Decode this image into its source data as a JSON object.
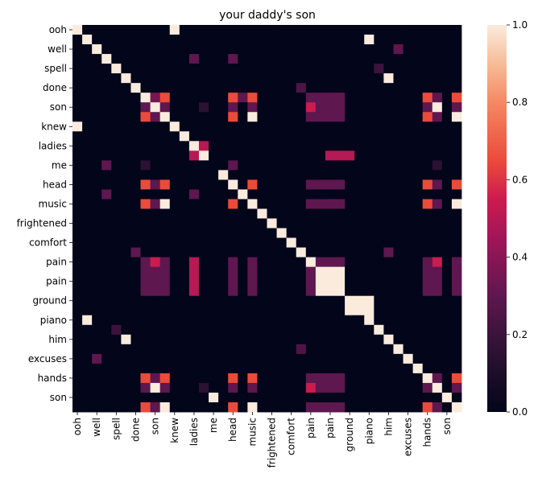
{
  "chart_data": {
    "type": "heatmap",
    "title": "your daddy's son",
    "xlabel": "",
    "ylabel": "",
    "colormap": "rocket",
    "color_range": [
      0.0,
      1.0
    ],
    "colorbar_ticks": [
      "0.0",
      "0.2",
      "0.4",
      "0.6",
      "0.8",
      "1.0"
    ],
    "tokens": [
      "ooh",
      "ooh",
      "well",
      "well",
      "spell",
      "spell",
      "done",
      "done",
      "son",
      "son",
      "knew",
      "knew",
      "ladies",
      "ladies",
      "me",
      "me",
      "head",
      "head",
      "music",
      "music",
      "frightened",
      "frightened",
      "comfort",
      "comfort",
      "pain",
      "pain",
      "pain",
      "pain",
      "ground",
      "ground",
      "piano",
      "piano",
      "him",
      "him",
      "excuses",
      "excuses",
      "hands",
      "hands",
      "son",
      "son"
    ],
    "x_tick_labels": [
      "ooh",
      "well",
      "spell",
      "done",
      "son",
      "knew",
      "ladies",
      "me",
      "head",
      "music",
      "frightened",
      "comfort",
      "pain",
      "pain",
      "ground",
      "piano",
      "him",
      "excuses",
      "hands",
      "son"
    ],
    "y_tick_labels": [
      "ooh",
      "well",
      "spell",
      "done",
      "son",
      "knew",
      "ladies",
      "me",
      "head",
      "music",
      "frightened",
      "comfort",
      "pain",
      "pain",
      "ground",
      "piano",
      "him",
      "excuses",
      "hands",
      "son"
    ],
    "cells": [
      [
        0,
        0,
        1
      ],
      [
        0,
        10,
        1
      ],
      [
        1,
        1,
        1
      ],
      [
        1,
        30,
        1
      ],
      [
        2,
        2,
        1
      ],
      [
        2,
        33,
        0.3
      ],
      [
        3,
        3,
        1
      ],
      [
        3,
        12,
        0.3
      ],
      [
        3,
        16,
        0.3
      ],
      [
        4,
        4,
        1
      ],
      [
        4,
        31,
        0.2
      ],
      [
        5,
        5,
        1
      ],
      [
        5,
        32,
        1
      ],
      [
        6,
        6,
        1
      ],
      [
        6,
        23,
        0.25
      ],
      [
        7,
        7,
        1
      ],
      [
        7,
        8,
        0.35
      ],
      [
        7,
        9,
        0.65
      ],
      [
        7,
        16,
        0.65
      ],
      [
        7,
        17,
        0.3
      ],
      [
        7,
        18,
        0.65
      ],
      [
        7,
        24,
        0.3
      ],
      [
        7,
        25,
        0.3
      ],
      [
        7,
        26,
        0.3
      ],
      [
        7,
        27,
        0.3
      ],
      [
        7,
        36,
        0.65
      ],
      [
        7,
        37,
        0.3
      ],
      [
        7,
        39,
        0.65
      ],
      [
        8,
        7,
        0.3
      ],
      [
        8,
        8,
        1
      ],
      [
        8,
        9,
        0.3
      ],
      [
        8,
        13,
        0.15
      ],
      [
        8,
        16,
        0.3
      ],
      [
        8,
        18,
        0.3
      ],
      [
        8,
        24,
        0.55
      ],
      [
        8,
        25,
        0.3
      ],
      [
        8,
        26,
        0.3
      ],
      [
        8,
        27,
        0.3
      ],
      [
        8,
        36,
        0.3
      ],
      [
        8,
        37,
        1
      ],
      [
        8,
        39,
        0.3
      ],
      [
        9,
        7,
        0.65
      ],
      [
        9,
        8,
        0.3
      ],
      [
        9,
        9,
        1
      ],
      [
        9,
        16,
        0.65
      ],
      [
        9,
        18,
        1
      ],
      [
        9,
        24,
        0.3
      ],
      [
        9,
        25,
        0.3
      ],
      [
        9,
        26,
        0.3
      ],
      [
        9,
        27,
        0.3
      ],
      [
        9,
        36,
        0.65
      ],
      [
        9,
        37,
        0.3
      ],
      [
        9,
        39,
        1
      ],
      [
        10,
        0,
        1
      ],
      [
        10,
        10,
        1
      ],
      [
        11,
        11,
        1
      ],
      [
        12,
        12,
        1
      ],
      [
        12,
        13,
        0.5
      ],
      [
        13,
        12,
        0.5
      ],
      [
        13,
        13,
        1
      ],
      [
        13,
        26,
        0.5
      ],
      [
        13,
        27,
        0.5
      ],
      [
        13,
        28,
        0.5
      ],
      [
        14,
        3,
        0.3
      ],
      [
        14,
        7,
        0.15
      ],
      [
        14,
        16,
        0.3
      ],
      [
        14,
        37,
        0.15
      ],
      [
        15,
        15,
        1
      ],
      [
        16,
        7,
        0.65
      ],
      [
        16,
        8,
        0.3
      ],
      [
        16,
        9,
        0.65
      ],
      [
        16,
        16,
        1
      ],
      [
        16,
        18,
        0.65
      ],
      [
        16,
        24,
        0.3
      ],
      [
        16,
        25,
        0.3
      ],
      [
        16,
        26,
        0.3
      ],
      [
        16,
        27,
        0.3
      ],
      [
        16,
        36,
        0.65
      ],
      [
        16,
        37,
        0.3
      ],
      [
        16,
        39,
        0.65
      ],
      [
        17,
        3,
        0.3
      ],
      [
        17,
        12,
        0.3
      ],
      [
        17,
        17,
        1
      ],
      [
        18,
        7,
        0.65
      ],
      [
        18,
        8,
        0.3
      ],
      [
        18,
        9,
        1
      ],
      [
        18,
        16,
        0.65
      ],
      [
        18,
        18,
        1
      ],
      [
        18,
        24,
        0.3
      ],
      [
        18,
        25,
        0.3
      ],
      [
        18,
        26,
        0.3
      ],
      [
        18,
        27,
        0.3
      ],
      [
        18,
        36,
        0.65
      ],
      [
        18,
        37,
        0.3
      ],
      [
        18,
        39,
        1
      ],
      [
        19,
        19,
        1
      ],
      [
        20,
        20,
        1
      ],
      [
        21,
        21,
        1
      ],
      [
        22,
        22,
        1
      ],
      [
        23,
        6,
        0.3
      ],
      [
        23,
        23,
        1
      ],
      [
        23,
        32,
        0.3
      ],
      [
        24,
        7,
        0.3
      ],
      [
        24,
        8,
        0.55
      ],
      [
        24,
        9,
        0.3
      ],
      [
        24,
        12,
        0.5
      ],
      [
        24,
        16,
        0.3
      ],
      [
        24,
        18,
        0.3
      ],
      [
        24,
        24,
        1
      ],
      [
        24,
        25,
        0.3
      ],
      [
        24,
        26,
        0.3
      ],
      [
        24,
        27,
        0.3
      ],
      [
        24,
        36,
        0.3
      ],
      [
        24,
        37,
        0.55
      ],
      [
        24,
        39,
        0.3
      ],
      [
        25,
        7,
        0.3
      ],
      [
        25,
        8,
        0.3
      ],
      [
        25,
        9,
        0.3
      ],
      [
        25,
        12,
        0.5
      ],
      [
        25,
        16,
        0.3
      ],
      [
        25,
        18,
        0.3
      ],
      [
        25,
        24,
        0.3
      ],
      [
        25,
        25,
        1
      ],
      [
        25,
        26,
        1
      ],
      [
        25,
        27,
        1
      ],
      [
        25,
        36,
        0.3
      ],
      [
        25,
        37,
        0.3
      ],
      [
        25,
        39,
        0.3
      ],
      [
        26,
        7,
        0.3
      ],
      [
        26,
        8,
        0.3
      ],
      [
        26,
        9,
        0.3
      ],
      [
        26,
        12,
        0.5
      ],
      [
        26,
        16,
        0.3
      ],
      [
        26,
        18,
        0.3
      ],
      [
        26,
        24,
        0.3
      ],
      [
        26,
        25,
        1
      ],
      [
        26,
        26,
        1
      ],
      [
        26,
        27,
        1
      ],
      [
        26,
        36,
        0.3
      ],
      [
        26,
        37,
        0.3
      ],
      [
        26,
        39,
        0.3
      ],
      [
        27,
        7,
        0.3
      ],
      [
        27,
        8,
        0.3
      ],
      [
        27,
        9,
        0.3
      ],
      [
        27,
        12,
        0.5
      ],
      [
        27,
        16,
        0.3
      ],
      [
        27,
        18,
        0.3
      ],
      [
        27,
        24,
        0.3
      ],
      [
        27,
        25,
        1
      ],
      [
        27,
        26,
        1
      ],
      [
        27,
        27,
        1
      ],
      [
        27,
        36,
        0.3
      ],
      [
        27,
        37,
        0.3
      ],
      [
        27,
        39,
        0.3
      ],
      [
        28,
        28,
        1
      ],
      [
        28,
        29,
        1
      ],
      [
        28,
        30,
        1
      ],
      [
        29,
        28,
        1
      ],
      [
        29,
        29,
        1
      ],
      [
        29,
        30,
        1
      ],
      [
        30,
        1,
        1
      ],
      [
        30,
        30,
        1
      ],
      [
        31,
        4,
        0.2
      ],
      [
        31,
        31,
        1
      ],
      [
        32,
        5,
        1
      ],
      [
        32,
        32,
        1
      ],
      [
        33,
        23,
        0.25
      ],
      [
        33,
        33,
        1
      ],
      [
        34,
        2,
        0.3
      ],
      [
        34,
        34,
        1
      ],
      [
        35,
        35,
        1
      ],
      [
        36,
        7,
        0.65
      ],
      [
        36,
        8,
        0.3
      ],
      [
        36,
        9,
        0.65
      ],
      [
        36,
        16,
        0.65
      ],
      [
        36,
        18,
        0.65
      ],
      [
        36,
        24,
        0.3
      ],
      [
        36,
        25,
        0.3
      ],
      [
        36,
        26,
        0.3
      ],
      [
        36,
        27,
        0.3
      ],
      [
        36,
        36,
        1
      ],
      [
        36,
        37,
        0.3
      ],
      [
        36,
        39,
        0.65
      ],
      [
        37,
        7,
        0.3
      ],
      [
        37,
        8,
        1
      ],
      [
        37,
        9,
        0.3
      ],
      [
        37,
        13,
        0.15
      ],
      [
        37,
        16,
        0.3
      ],
      [
        37,
        18,
        0.3
      ],
      [
        37,
        24,
        0.55
      ],
      [
        37,
        25,
        0.3
      ],
      [
        37,
        26,
        0.3
      ],
      [
        37,
        27,
        0.3
      ],
      [
        37,
        36,
        0.3
      ],
      [
        37,
        37,
        1
      ],
      [
        37,
        39,
        0.3
      ],
      [
        38,
        14,
        1
      ],
      [
        38,
        38,
        1
      ],
      [
        39,
        7,
        0.65
      ],
      [
        39,
        8,
        0.3
      ],
      [
        39,
        9,
        1
      ],
      [
        39,
        16,
        0.65
      ],
      [
        39,
        18,
        1
      ],
      [
        39,
        24,
        0.3
      ],
      [
        39,
        25,
        0.3
      ],
      [
        39,
        26,
        0.3
      ],
      [
        39,
        27,
        0.3
      ],
      [
        39,
        36,
        0.65
      ],
      [
        39,
        37,
        0.3
      ],
      [
        39,
        39,
        1
      ]
    ]
  }
}
